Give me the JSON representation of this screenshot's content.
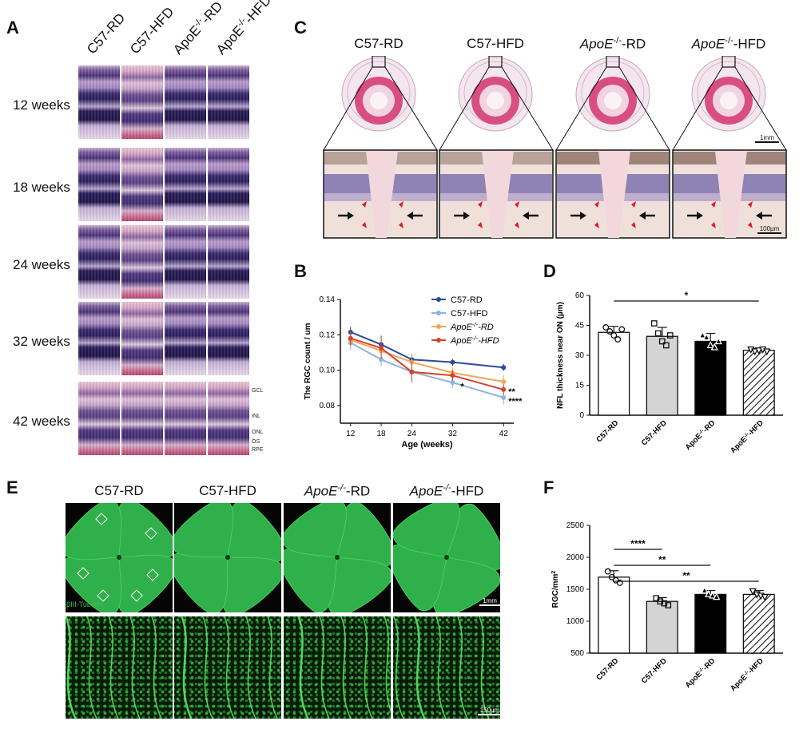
{
  "panels": {
    "A": {
      "label": "A",
      "columns": [
        "C57-RD",
        "C57-HFD",
        "ApoE-/--RD",
        "ApoE-/--HFD"
      ],
      "rows": [
        "12 weeks",
        "18 weeks",
        "24 weeks",
        "32 weeks",
        "42 weeks"
      ],
      "layers": [
        "GCL",
        "INL",
        "ONL",
        "OS",
        "RPE"
      ]
    },
    "B": {
      "label": "B",
      "chart_data": {
        "type": "line",
        "xlabel": "Age (weeks)",
        "ylabel": "The RGC count / um",
        "x": [
          12,
          18,
          24,
          32,
          42
        ],
        "ylim": [
          0.07,
          0.14
        ],
        "yticks": [
          0.08,
          0.1,
          0.12,
          0.14
        ],
        "legend_position": "top-right",
        "series": [
          {
            "name": "C57-RD",
            "color": "#2d4a9c",
            "values": [
              0.1215,
              0.1145,
              0.106,
              0.1045,
              0.1015
            ],
            "errors": [
              0.003,
              0.005,
              0.003,
              0.002,
              0.002
            ]
          },
          {
            "name": "C57-HFD",
            "color": "#8fb4dd",
            "values": [
              0.1155,
              0.106,
              0.099,
              0.093,
              0.0845
            ],
            "errors": [
              0.004,
              0.004,
              0.004,
              0.003,
              0.004
            ]
          },
          {
            "name": "ApoE-/--RD",
            "color": "#f2a65a",
            "values": [
              0.117,
              0.111,
              0.1045,
              0.0985,
              0.0935
            ],
            "errors": [
              0.005,
              0.005,
              0.005,
              0.003,
              0.004
            ]
          },
          {
            "name": "ApoE-/--HFD",
            "color": "#d4432a",
            "values": [
              0.118,
              0.1125,
              0.099,
              0.097,
              0.089
            ],
            "errors": [
              0.004,
              0.006,
              0.006,
              0.003,
              0.003
            ]
          }
        ],
        "annotations": [
          "*",
          "**",
          "****"
        ]
      }
    },
    "C": {
      "label": "C",
      "columns": [
        "C57-RD",
        "C57-HFD",
        "ApoE-/--RD",
        "ApoE-/--HFD"
      ],
      "scale_top": "1mm",
      "scale_bottom": "100µm"
    },
    "D": {
      "label": "D",
      "chart_data": {
        "type": "bar",
        "categories": [
          "C57-RD",
          "C57-HFD",
          "ApoE-/--RD",
          "ApoE-/--HFD"
        ],
        "values": [
          41.5,
          39.5,
          37.0,
          32.5
        ],
        "errors": [
          3.0,
          4.5,
          4.0,
          1.0
        ],
        "points": [
          [
            44,
            42,
            40,
            38,
            43
          ],
          [
            46,
            41,
            37,
            35,
            40
          ],
          [
            40,
            39,
            35,
            34,
            37
          ],
          [
            33,
            32,
            32.5,
            33,
            32
          ]
        ],
        "ylabel": "NFL thickness near ON (µm)",
        "ylim": [
          0,
          60
        ],
        "yticks": [
          0,
          15,
          30,
          45,
          60
        ],
        "significance": [
          {
            "from": 0,
            "to": 3,
            "label": "*"
          }
        ]
      }
    },
    "E": {
      "label": "E",
      "columns": [
        "C57-RD",
        "C57-HFD",
        "ApoE-/--RD",
        "ApoE-/--HFD"
      ],
      "stain": "βIII-Tubulin",
      "scale_top": "1mm",
      "scale_bottom": "150µm"
    },
    "F": {
      "label": "F",
      "chart_data": {
        "type": "bar",
        "categories": [
          "C57-RD",
          "C57-HFD",
          "ApoE-/--RD",
          "ApoE-/--HFD"
        ],
        "values": [
          1690,
          1310,
          1420,
          1420
        ],
        "errors": [
          100,
          60,
          60,
          60
        ],
        "points": [
          [
            1780,
            1690,
            1640,
            1600
          ],
          [
            1360,
            1310,
            1280,
            1250
          ],
          [
            1480,
            1420,
            1400,
            1380
          ],
          [
            1470,
            1420,
            1400,
            1380
          ]
        ],
        "ylabel": "RGC/mm",
        "ylabel_sup": "2",
        "ylim": [
          500,
          2500
        ],
        "yticks": [
          500,
          1000,
          1500,
          2000,
          2500
        ],
        "significance": [
          {
            "from": 0,
            "to": 1,
            "label": "****"
          },
          {
            "from": 0,
            "to": 2,
            "label": "**"
          },
          {
            "from": 0,
            "to": 3,
            "label": "**"
          }
        ]
      }
    }
  }
}
